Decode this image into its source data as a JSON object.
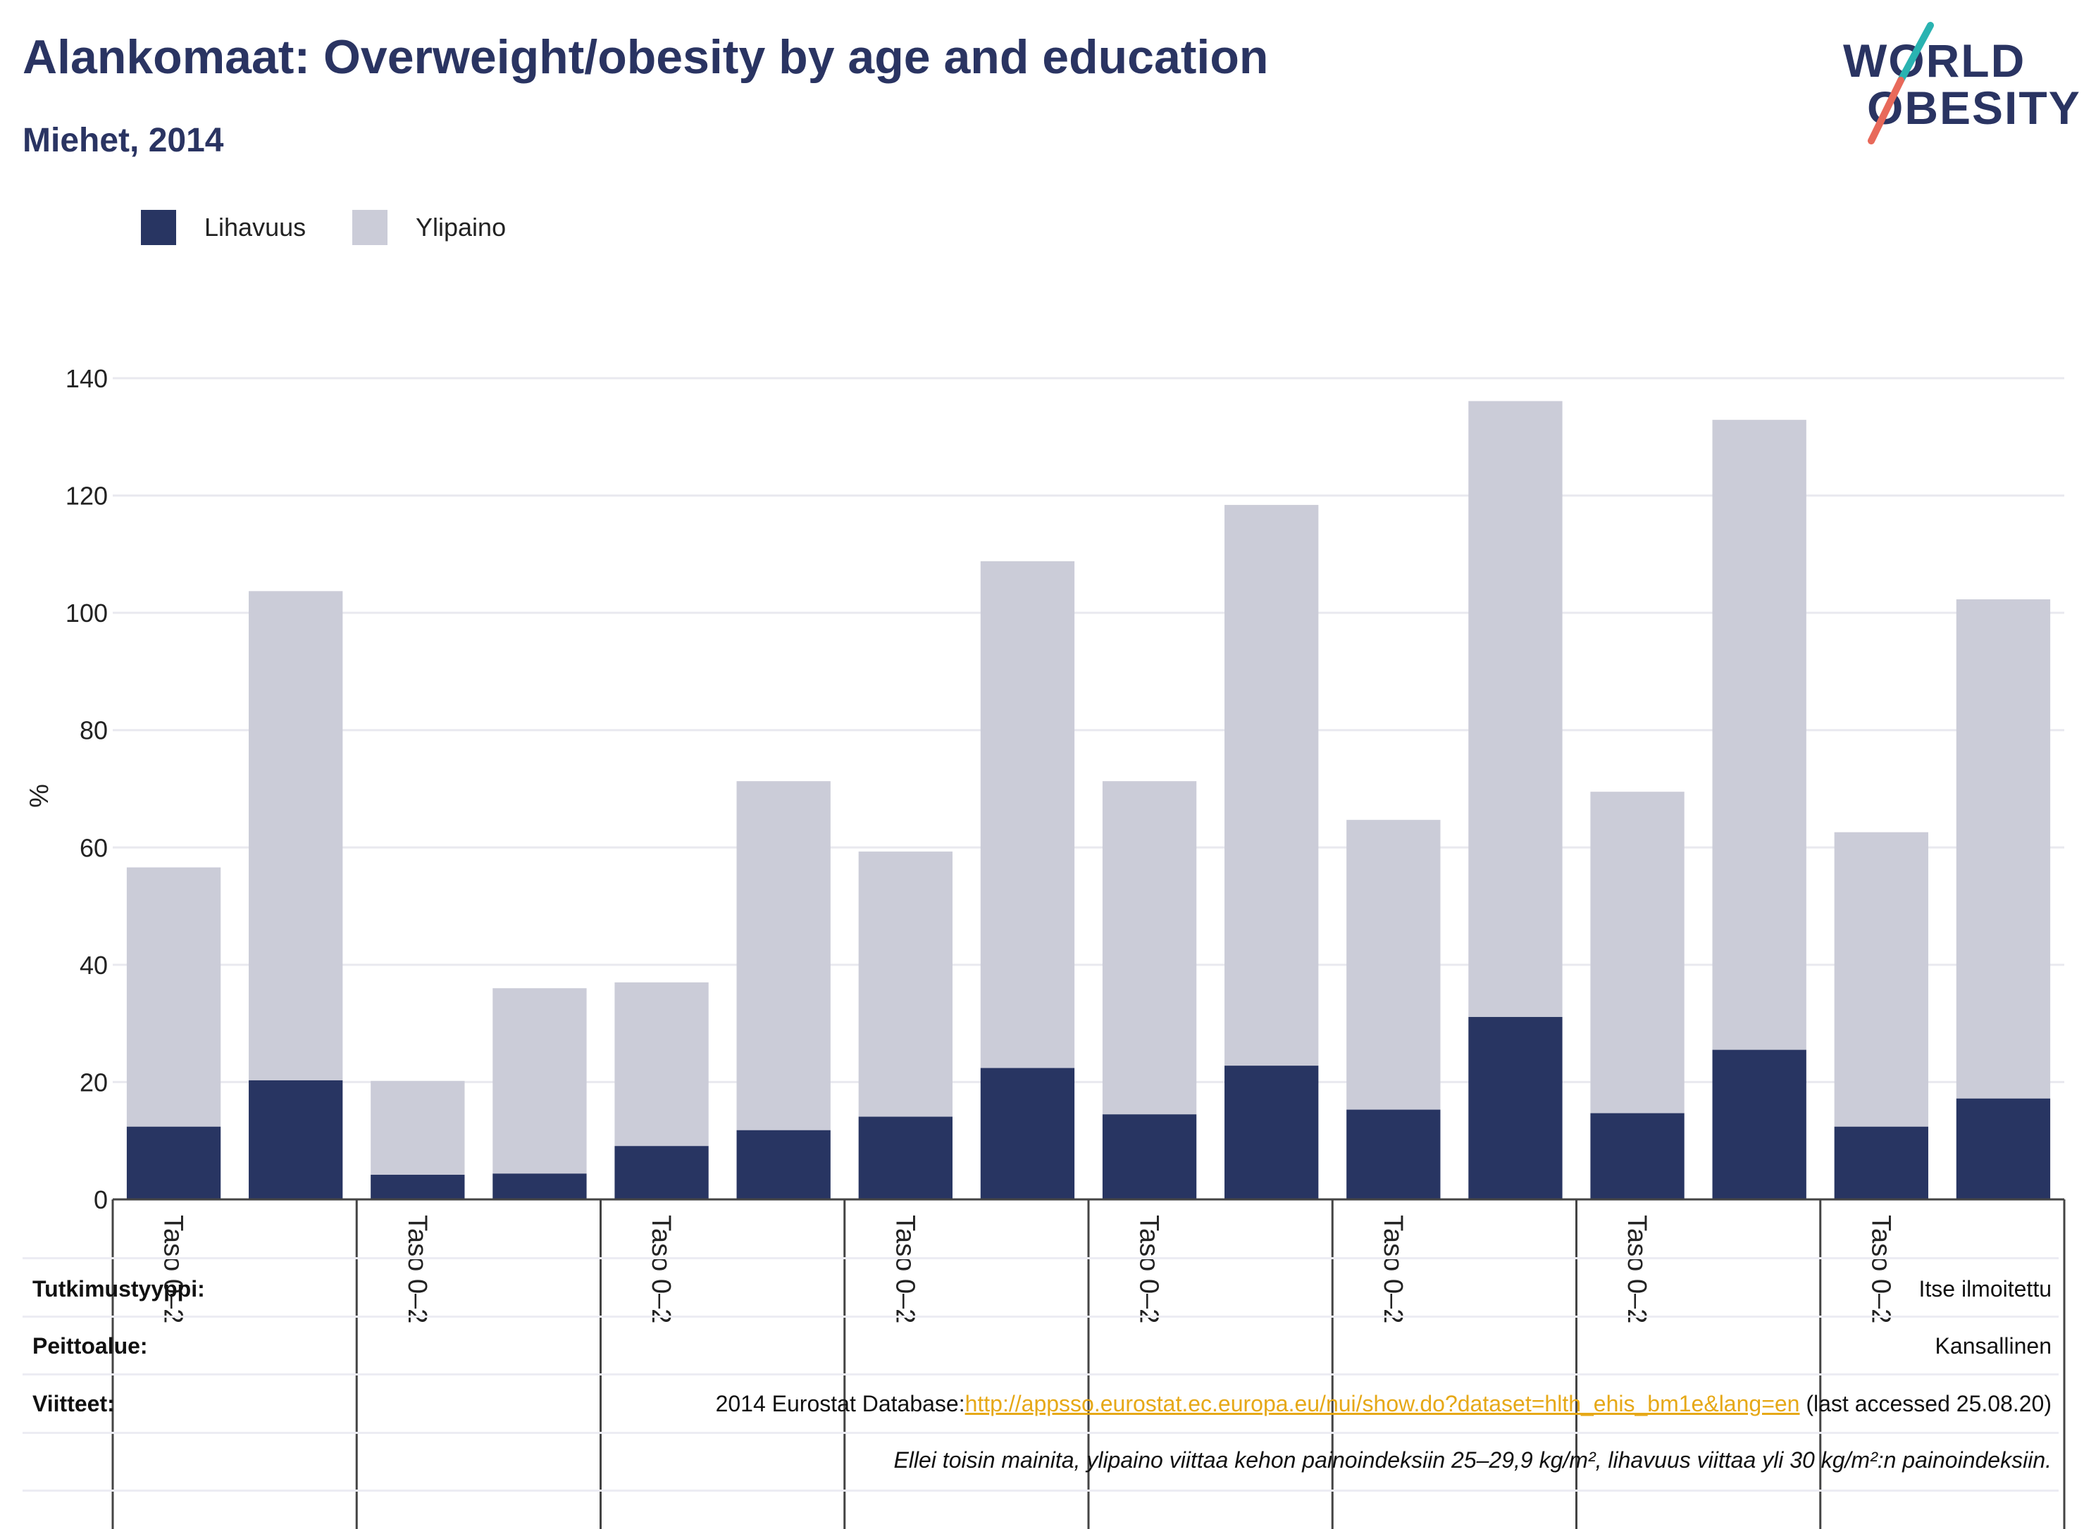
{
  "title": "Alankomaat: Overweight/obesity by age and education",
  "subtitle": "Miehet, 2014",
  "logo": {
    "line1": "WORLD",
    "line2": "OBESITY"
  },
  "legend": [
    {
      "label": "Lihavuus",
      "color": "#283562"
    },
    {
      "label": "Ylipaino",
      "color": "#cbccd8"
    }
  ],
  "chart_data": {
    "type": "bar",
    "stacked": true,
    "ylabel": "%",
    "ylim": [
      0,
      140
    ],
    "yticks": [
      0,
      20,
      40,
      60,
      80,
      100,
      120,
      140
    ],
    "grid": true,
    "legend_position": "top-left",
    "category_labels": [
      "Taso 0–2",
      "Taso 0–2",
      "Taso 0–2",
      "Taso 0–2",
      "Taso 0–2",
      "Taso 0–2",
      "Taso 0–2",
      "Taso 0–2"
    ],
    "bars_per_group": 2,
    "series": [
      {
        "name": "Lihavuus",
        "color": "#283562",
        "values": [
          12.4,
          20.3,
          4.2,
          4.4,
          9.1,
          11.8,
          14.1,
          22.4,
          14.5,
          22.8,
          15.3,
          31.1,
          14.7,
          25.5,
          12.4,
          17.2
        ]
      },
      {
        "name": "Ylipaino",
        "color": "#cbccd8",
        "values": [
          44.2,
          83.4,
          16.0,
          31.6,
          27.9,
          59.5,
          45.2,
          86.4,
          56.8,
          95.6,
          49.4,
          105.0,
          54.8,
          107.4,
          50.2,
          85.1
        ]
      }
    ]
  },
  "meta": {
    "study_type_label": "Tutkimustyyppi:",
    "study_type_value": "Itse ilmoitettu",
    "coverage_label": "Peittoalue:",
    "coverage_value": "Kansallinen",
    "references_label": "Viitteet:",
    "reference_prefix": "2014 Eurostat Database:",
    "reference_link": "http://appsso.eurostat.ec.europa.eu/nui/show.do?dataset=hlth_ehis_bm1e&lang=en",
    "reference_suffix": " (last accessed 25.08.20)",
    "note": "Ellei toisin mainita, ylipaino viittaa kehon painoindeksiin 25–29,9 kg/m², lihavuus viittaa yli 30 kg/m²:n painoindeksiin."
  }
}
